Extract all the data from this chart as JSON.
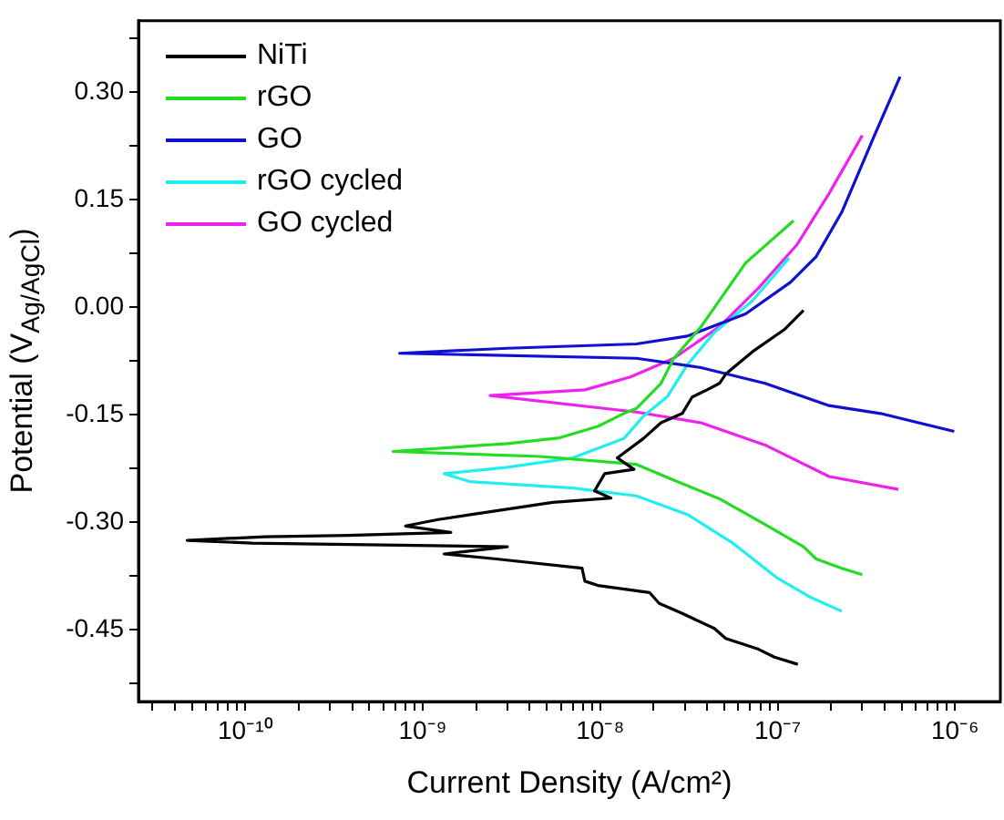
{
  "chart_data": {
    "type": "line",
    "xlabel": "Current Density (A/cm²)",
    "ylabel": "Potential (V$_{Ag/AgCl}$)",
    "log": "x",
    "grid": false,
    "legend": "top left",
    "xlim": [
      2.5e-11,
      1.8e-06
    ],
    "ylim": [
      -0.55,
      0.4
    ],
    "xticks": [
      {
        "value": 3e-11,
        "label": null
      },
      {
        "value": 4e-11,
        "label": null
      },
      {
        "value": 5e-11,
        "label": null
      },
      {
        "value": 6e-11,
        "label": null
      },
      {
        "value": 7e-11,
        "label": null
      },
      {
        "value": 8e-11,
        "label": null
      },
      {
        "value": 9e-11,
        "label": null
      },
      {
        "value": 1e-10,
        "label": "10⁻¹⁰"
      },
      {
        "value": 2e-10,
        "label": null
      },
      {
        "value": 3e-10,
        "label": null
      },
      {
        "value": 4e-10,
        "label": null
      },
      {
        "value": 5e-10,
        "label": null
      },
      {
        "value": 6e-10,
        "label": null
      },
      {
        "value": 7e-10,
        "label": null
      },
      {
        "value": 8e-10,
        "label": null
      },
      {
        "value": 9e-10,
        "label": null
      },
      {
        "value": 1e-09,
        "label": "10⁻⁹"
      },
      {
        "value": 2e-09,
        "label": null
      },
      {
        "value": 3e-09,
        "label": null
      },
      {
        "value": 4e-09,
        "label": null
      },
      {
        "value": 5e-09,
        "label": null
      },
      {
        "value": 6e-09,
        "label": null
      },
      {
        "value": 7e-09,
        "label": null
      },
      {
        "value": 8e-09,
        "label": null
      },
      {
        "value": 9e-09,
        "label": null
      },
      {
        "value": 1e-08,
        "label": "10⁻⁸"
      },
      {
        "value": 2e-08,
        "label": null
      },
      {
        "value": 3e-08,
        "label": null
      },
      {
        "value": 4e-08,
        "label": null
      },
      {
        "value": 5e-08,
        "label": null
      },
      {
        "value": 6e-08,
        "label": null
      },
      {
        "value": 7e-08,
        "label": null
      },
      {
        "value": 8e-08,
        "label": null
      },
      {
        "value": 9e-08,
        "label": null
      },
      {
        "value": 1e-07,
        "label": "10⁻⁷"
      },
      {
        "value": 2e-07,
        "label": null
      },
      {
        "value": 3e-07,
        "label": null
      },
      {
        "value": 4e-07,
        "label": null
      },
      {
        "value": 5e-07,
        "label": null
      },
      {
        "value": 6e-07,
        "label": null
      },
      {
        "value": 7e-07,
        "label": null
      },
      {
        "value": 8e-07,
        "label": null
      },
      {
        "value": 9e-07,
        "label": null
      },
      {
        "value": 1e-06,
        "label": "10⁻⁶"
      }
    ],
    "yticks": [
      {
        "value": -0.525,
        "label": null
      },
      {
        "value": -0.45,
        "label": "-0.45"
      },
      {
        "value": -0.375,
        "label": null
      },
      {
        "value": -0.3,
        "label": "-0.30"
      },
      {
        "value": -0.225,
        "label": null
      },
      {
        "value": -0.15,
        "label": "-0.15"
      },
      {
        "value": -0.075,
        "label": null
      },
      {
        "value": 0,
        "label": "0.00"
      },
      {
        "value": 0.075,
        "label": null
      },
      {
        "value": 0.15,
        "label": "0.15"
      },
      {
        "value": 0.225,
        "label": null
      },
      {
        "value": 0.3,
        "label": "0.30"
      },
      {
        "value": 0.375,
        "label": null
      }
    ],
    "series": [
      {
        "name": "NiTi",
        "color": "#000000",
        "x": [
          1.4e-07,
          1.09e-07,
          7.2e-08,
          5.1e-08,
          4.7e-08,
          4e-08,
          3.3e-08,
          2.9e-08,
          2.2e-08,
          1.75e-08,
          1.25e-08,
          1.55e-08,
          1.06e-08,
          9.3e-09,
          1.15e-08,
          5.4e-09,
          2.4e-09,
          1.22e-09,
          8e-10,
          1.44e-09,
          3.8e-10,
          1.29e-10,
          4.7e-11,
          1.09e-10,
          3e-09,
          1.32e-09,
          2.6e-09,
          7.9e-09,
          8.2e-09,
          9.7e-09,
          1.9e-08,
          2.15e-08,
          2.9e-08,
          4.4e-08,
          5.1e-08,
          7.8e-08,
          9.6e-08,
          1.3e-07
        ],
        "values": [
          -0.004,
          -0.031,
          -0.062,
          -0.093,
          -0.106,
          -0.115,
          -0.125,
          -0.148,
          -0.161,
          -0.183,
          -0.21,
          -0.226,
          -0.232,
          -0.256,
          -0.266,
          -0.272,
          -0.285,
          -0.296,
          -0.305,
          -0.314,
          -0.318,
          -0.32,
          -0.325,
          -0.329,
          -0.334,
          -0.344,
          -0.351,
          -0.364,
          -0.382,
          -0.388,
          -0.398,
          -0.413,
          -0.427,
          -0.448,
          -0.462,
          -0.477,
          -0.488,
          -0.498
        ]
      },
      {
        "name": "rGO",
        "color": "#22dd22",
        "x": [
          1.23e-07,
          6.6e-08,
          3.7e-08,
          2.6e-08,
          2.2e-08,
          1.6e-08,
          1.36e-08,
          9.7e-09,
          5.9e-09,
          3e-09,
          6.8e-10,
          4.6e-09,
          1.6e-08,
          2.6e-08,
          4.7e-08,
          8.5e-08,
          1.4e-07,
          1.65e-07,
          2.3e-07,
          3e-07
        ],
        "values": [
          0.121,
          0.062,
          -0.027,
          -0.071,
          -0.106,
          -0.141,
          -0.148,
          -0.166,
          -0.182,
          -0.19,
          -0.201,
          -0.208,
          -0.219,
          -0.241,
          -0.267,
          -0.303,
          -0.334,
          -0.351,
          -0.364,
          -0.373
        ]
      },
      {
        "name": "GO",
        "color": "#1010d0",
        "x": [
          4.9e-07,
          3.5e-07,
          2.3e-07,
          1.65e-07,
          1.18e-07,
          6.6e-08,
          3.1e-08,
          1.6e-08,
          3e-09,
          7.4e-10,
          1.6e-08,
          3.7e-08,
          8.5e-08,
          1.95e-07,
          3.8e-07,
          9.9e-07
        ],
        "values": [
          0.322,
          0.239,
          0.133,
          0.071,
          0.035,
          -0.009,
          -0.04,
          -0.051,
          -0.057,
          -0.064,
          -0.071,
          -0.084,
          -0.106,
          -0.137,
          -0.148,
          -0.173
        ]
      },
      {
        "name": "rGO cycled",
        "color": "#22eeee",
        "x": [
          1.16e-07,
          7.2e-08,
          4.4e-08,
          3.1e-08,
          2.4e-08,
          1.75e-08,
          1.36e-08,
          7e-09,
          3e-09,
          1.32e-09,
          1.84e-09,
          7e-09,
          1.6e-08,
          3.1e-08,
          5.6e-08,
          1e-07,
          1.52e-07,
          2.3e-07
        ],
        "values": [
          0.069,
          0.009,
          -0.035,
          -0.08,
          -0.124,
          -0.152,
          -0.183,
          -0.21,
          -0.223,
          -0.232,
          -0.243,
          -0.252,
          -0.263,
          -0.289,
          -0.329,
          -0.378,
          -0.404,
          -0.424
        ]
      },
      {
        "name": "GO cycled",
        "color": "#ee22ee",
        "x": [
          3e-07,
          1.95e-07,
          1.29e-07,
          7.8e-08,
          4.7e-08,
          2.6e-08,
          1.48e-08,
          8.2e-09,
          2.4e-09,
          1.6e-08,
          3.7e-08,
          8.5e-08,
          1.95e-07,
          4.8e-07
        ],
        "values": [
          0.24,
          0.159,
          0.088,
          0.027,
          -0.027,
          -0.071,
          -0.097,
          -0.115,
          -0.123,
          -0.146,
          -0.161,
          -0.192,
          -0.236,
          -0.254
        ]
      }
    ]
  }
}
